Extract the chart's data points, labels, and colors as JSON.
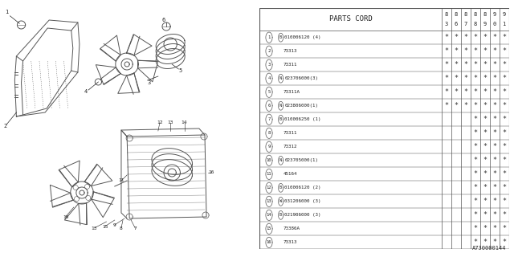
{
  "bg_color": "#ffffff",
  "diagram_code": "A730000144",
  "table": {
    "rows": [
      {
        "num": "1",
        "prefix": "B",
        "part": "010006120 (4)",
        "stars": [
          1,
          1,
          1,
          1,
          1,
          1,
          1
        ]
      },
      {
        "num": "2",
        "prefix": "",
        "part": "73313",
        "stars": [
          1,
          1,
          1,
          1,
          1,
          1,
          1
        ]
      },
      {
        "num": "3",
        "prefix": "",
        "part": "73311",
        "stars": [
          1,
          1,
          1,
          1,
          1,
          1,
          1
        ]
      },
      {
        "num": "4",
        "prefix": "N",
        "part": "023706000(3)",
        "stars": [
          1,
          1,
          1,
          1,
          1,
          1,
          1
        ]
      },
      {
        "num": "5",
        "prefix": "",
        "part": "73311A",
        "stars": [
          1,
          1,
          1,
          1,
          1,
          1,
          1
        ]
      },
      {
        "num": "6",
        "prefix": "N",
        "part": "023806000(1)",
        "stars": [
          1,
          1,
          1,
          1,
          1,
          1,
          1
        ]
      },
      {
        "num": "7",
        "prefix": "B",
        "part": "010006250 (1)",
        "stars": [
          0,
          0,
          0,
          1,
          1,
          1,
          1
        ]
      },
      {
        "num": "8",
        "prefix": "",
        "part": "73311",
        "stars": [
          0,
          0,
          0,
          1,
          1,
          1,
          1
        ]
      },
      {
        "num": "9",
        "prefix": "",
        "part": "73312",
        "stars": [
          0,
          0,
          0,
          1,
          1,
          1,
          1
        ]
      },
      {
        "num": "10",
        "prefix": "N",
        "part": "023705000(1)",
        "stars": [
          0,
          0,
          0,
          1,
          1,
          1,
          1
        ]
      },
      {
        "num": "11",
        "prefix": "",
        "part": "45164",
        "stars": [
          0,
          0,
          0,
          1,
          1,
          1,
          1
        ]
      },
      {
        "num": "12",
        "prefix": "B",
        "part": "010006120 (2)",
        "stars": [
          0,
          0,
          0,
          1,
          1,
          1,
          1
        ]
      },
      {
        "num": "13",
        "prefix": "W",
        "part": "031206000 (3)",
        "stars": [
          0,
          0,
          0,
          1,
          1,
          1,
          1
        ]
      },
      {
        "num": "14",
        "prefix": "B",
        "part": "021906000 (3)",
        "stars": [
          0,
          0,
          0,
          1,
          1,
          1,
          1
        ]
      },
      {
        "num": "15",
        "prefix": "",
        "part": "73386A",
        "stars": [
          0,
          0,
          0,
          1,
          1,
          1,
          1
        ]
      },
      {
        "num": "16",
        "prefix": "",
        "part": "73313",
        "stars": [
          0,
          0,
          0,
          1,
          1,
          1,
          1
        ]
      }
    ],
    "year_labels": [
      "83",
      "86",
      "87",
      "88",
      "89",
      "90",
      "91"
    ]
  },
  "line_color": "#555555",
  "text_color": "#222222",
  "star_color": "#333333"
}
